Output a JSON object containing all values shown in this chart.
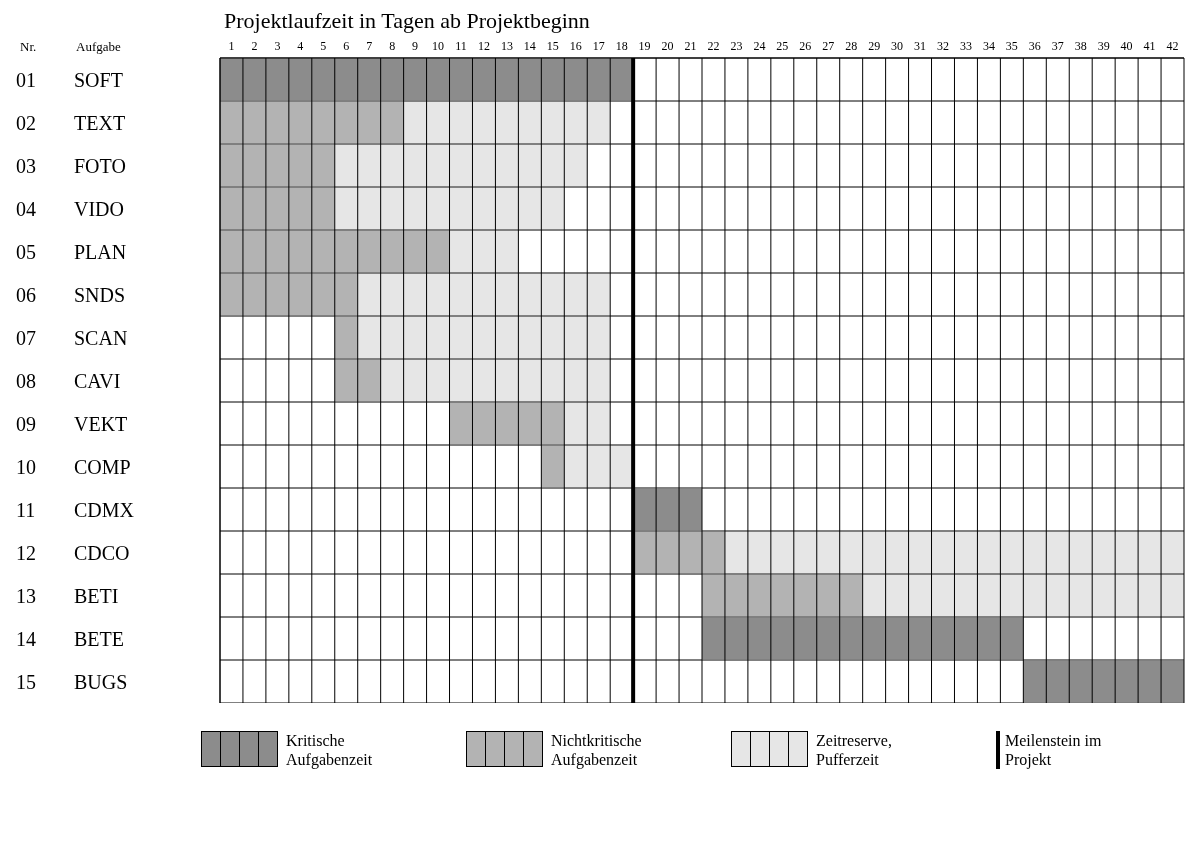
{
  "chart_data": {
    "type": "bar",
    "orientation": "horizontal",
    "xlabel": "Projektlaufzeit in Tagen ab Projektbeginn",
    "annotations": [
      "Nr.",
      "Aufgabe"
    ],
    "categories": [
      "01 SOFT",
      "02 TEXT",
      "03 FOTO",
      "04 VIDO",
      "05 PLAN",
      "06 SNDS",
      "07 SCAN",
      "08 CAVI",
      "09 VEKT",
      "10 COMP",
      "11 CDMX",
      "12 CDCO",
      "13 BETI",
      "14 BETE",
      "15 BUGS"
    ],
    "series": [
      {
        "name": "Kritische Aufgabenzeit",
        "color": "#8c8c8c",
        "base": [
          0,
          null,
          null,
          null,
          null,
          null,
          null,
          null,
          null,
          null,
          18,
          null,
          null,
          21,
          35
        ],
        "values": [
          18,
          null,
          null,
          null,
          null,
          null,
          null,
          null,
          null,
          null,
          3,
          null,
          null,
          14,
          7
        ]
      },
      {
        "name": "Nichtkritische Aufgabenzeit",
        "color": "#b3b3b3",
        "base": [
          null,
          0,
          0,
          0,
          0,
          0,
          5,
          5,
          10,
          14,
          null,
          18,
          21,
          null,
          null
        ],
        "values": [
          null,
          8,
          5,
          5,
          10,
          6,
          1,
          2,
          5,
          1,
          null,
          4,
          7,
          null,
          null
        ]
      },
      {
        "name": "Zeitreserve, Pufferzeit",
        "color": "#e6e6e6",
        "base": [
          null,
          8,
          5,
          5,
          10,
          6,
          6,
          7,
          15,
          15,
          null,
          22,
          28,
          null,
          null
        ],
        "values": [
          null,
          9,
          11,
          10,
          3,
          11,
          11,
          10,
          2,
          3,
          null,
          20,
          14,
          null,
          null
        ]
      }
    ],
    "xlim": [
      0,
      42
    ],
    "xticks": [
      {
        "value": 0.5,
        "label": "1"
      },
      {
        "value": 1.5,
        "label": "2"
      },
      {
        "value": 2.5,
        "label": "3"
      },
      {
        "value": 3.5,
        "label": "4"
      },
      {
        "value": 4.5,
        "label": "5"
      },
      {
        "value": 5.5,
        "label": "6"
      },
      {
        "value": 6.5,
        "label": "7"
      },
      {
        "value": 7.5,
        "label": "8"
      },
      {
        "value": 8.5,
        "label": "9"
      },
      {
        "value": 9.5,
        "label": "10"
      },
      {
        "value": 10.5,
        "label": "11"
      },
      {
        "value": 11.5,
        "label": "12"
      },
      {
        "value": 12.5,
        "label": "13"
      },
      {
        "value": 13.5,
        "label": "14"
      },
      {
        "value": 14.5,
        "label": "15"
      },
      {
        "value": 15.5,
        "label": "16"
      },
      {
        "value": 16.5,
        "label": "17"
      },
      {
        "value": 17.5,
        "label": "18"
      },
      {
        "value": 18.5,
        "label": "19"
      },
      {
        "value": 19.5,
        "label": "20"
      },
      {
        "value": 20.5,
        "label": "21"
      },
      {
        "value": 21.5,
        "label": "22"
      },
      {
        "value": 22.5,
        "label": "23"
      },
      {
        "value": 23.5,
        "label": "24"
      },
      {
        "value": 24.5,
        "label": "25"
      },
      {
        "value": 25.5,
        "label": "26"
      },
      {
        "value": 26.5,
        "label": "27"
      },
      {
        "value": 27.5,
        "label": "28"
      },
      {
        "value": 28.5,
        "label": "29"
      },
      {
        "value": 29.5,
        "label": "30"
      },
      {
        "value": 30.5,
        "label": "31"
      },
      {
        "value": 31.5,
        "label": "32"
      },
      {
        "value": 32.5,
        "label": "33"
      },
      {
        "value": 33.5,
        "label": "34"
      },
      {
        "value": 34.5,
        "label": "35"
      },
      {
        "value": 35.5,
        "label": "36"
      },
      {
        "value": 36.5,
        "label": "37"
      },
      {
        "value": 37.5,
        "label": "38"
      },
      {
        "value": 38.5,
        "label": "39"
      },
      {
        "value": 39.5,
        "label": "40"
      },
      {
        "value": 40.5,
        "label": "41"
      },
      {
        "value": 41.5,
        "label": "42"
      }
    ],
    "ref_lines": [
      {
        "axis": "x",
        "value": 18,
        "label": "Meilenstein im Projekt",
        "color": "#000000"
      }
    ],
    "grid": true,
    "legend": "bottom"
  }
}
